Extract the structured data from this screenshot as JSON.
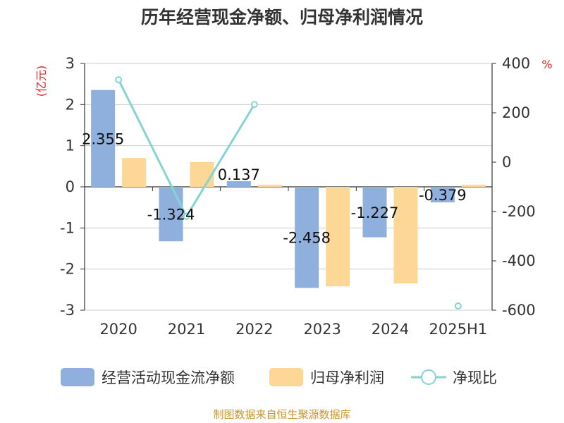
{
  "chart_data": {
    "type": "bar",
    "title": "历年经营现金净额、归母净利润情况",
    "categories": [
      "2020",
      "2021",
      "2022",
      "2023",
      "2024",
      "2025H1"
    ],
    "left_axis": {
      "unit": "(亿元)",
      "ticks": [
        "3",
        "2",
        "1",
        "0",
        "-1",
        "-2",
        "-3"
      ],
      "ylim": [
        -3,
        3
      ]
    },
    "right_axis": {
      "unit": "%",
      "ticks": [
        "400",
        "200",
        "0",
        "-200",
        "-400",
        "-600"
      ],
      "ylim": [
        -600,
        400
      ]
    },
    "series": [
      {
        "name": "经营活动现金流净额",
        "type": "bar",
        "axis": "left",
        "color": "#8fb0dc",
        "values": [
          2.355,
          -1.324,
          0.137,
          -2.458,
          -1.227,
          -0.379
        ],
        "labels": [
          "2.355",
          "-1.324",
          "0.137",
          "-2.458",
          "-1.227",
          "-0.379"
        ]
      },
      {
        "name": "归母净利润",
        "type": "bar",
        "axis": "left",
        "color": "#fdd796",
        "values": [
          0.7,
          0.6,
          0.05,
          -2.42,
          -2.35,
          0.05
        ]
      },
      {
        "name": "净现比",
        "type": "line",
        "axis": "right",
        "color": "#86d3d3",
        "values": [
          334,
          -220,
          234,
          null,
          null,
          -583
        ]
      }
    ],
    "grid": true,
    "legend_position": "bottom",
    "source": "制图数据来自恒生聚源数据库"
  }
}
